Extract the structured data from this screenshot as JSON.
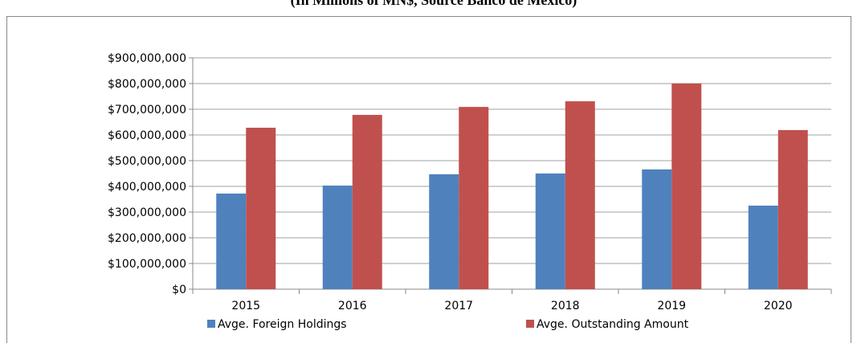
{
  "chart_data": {
    "type": "bar",
    "title": "(In Millions of MN$, Source Banco de Mexico)",
    "categories": [
      "2015",
      "2016",
      "2017",
      "2018",
      "2019",
      "2020"
    ],
    "series": [
      {
        "name": "Avge. Foreign Holdings",
        "color": "#4f81bd",
        "values": [
          372000000,
          403000000,
          447000000,
          450000000,
          466000000,
          325000000
        ]
      },
      {
        "name": "Avge. Outstanding Amount",
        "color": "#c0504d",
        "values": [
          628000000,
          678000000,
          709000000,
          731000000,
          800000000,
          619000000
        ]
      }
    ],
    "ylim": [
      0,
      900000000
    ],
    "yticks": [
      {
        "value": 0,
        "label": "$0"
      },
      {
        "value": 100000000,
        "label": "$100,000,000"
      },
      {
        "value": 200000000,
        "label": "$200,000,000"
      },
      {
        "value": 300000000,
        "label": "$300,000,000"
      },
      {
        "value": 400000000,
        "label": "$400,000,000"
      },
      {
        "value": 500000000,
        "label": "$500,000,000"
      },
      {
        "value": 600000000,
        "label": "$600,000,000"
      },
      {
        "value": 700000000,
        "label": "$700,000,000"
      },
      {
        "value": 800000000,
        "label": "$800,000,000"
      },
      {
        "value": 900000000,
        "label": "$900,000,000"
      }
    ],
    "grid": true,
    "legend": "bottom"
  }
}
